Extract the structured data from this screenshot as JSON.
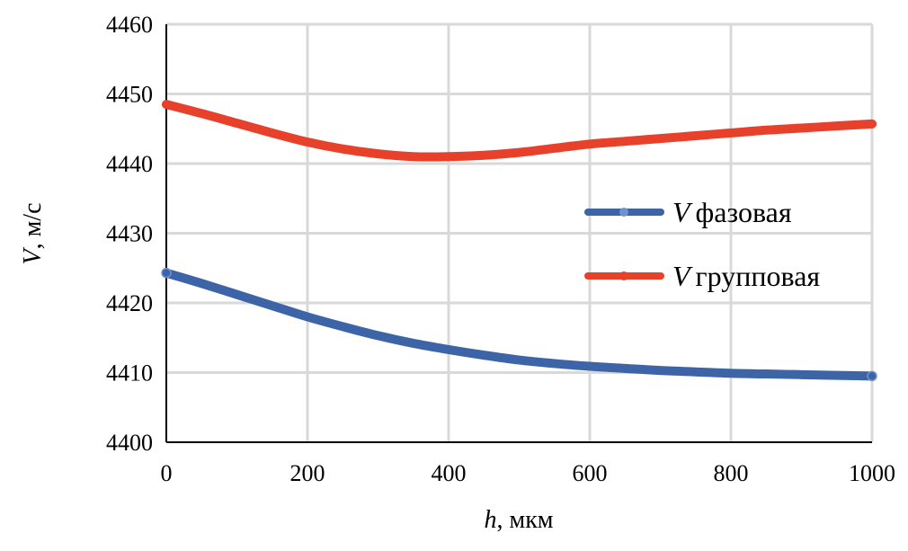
{
  "chart_data": {
    "type": "line",
    "title": "",
    "xlabel": {
      "var": "h",
      "unit": ", мкм"
    },
    "ylabel": {
      "var": "V",
      "unit": ", м/с"
    },
    "xlim": [
      0,
      1000
    ],
    "ylim": [
      4400,
      4460
    ],
    "xticks": [
      0,
      200,
      400,
      600,
      800,
      1000
    ],
    "yticks": [
      4400,
      4410,
      4420,
      4430,
      4440,
      4450,
      4460
    ],
    "grid": true,
    "legend_placement": "right",
    "x": [
      0,
      50,
      100,
      150,
      200,
      250,
      300,
      350,
      400,
      450,
      500,
      550,
      600,
      650,
      700,
      750,
      800,
      850,
      900,
      950,
      1000
    ],
    "series": [
      {
        "name": "фазовая",
        "var": "V",
        "color": "#3c64a6",
        "values": [
          4424.3,
          4422.8,
          4421.2,
          4419.6,
          4418.0,
          4416.6,
          4415.3,
          4414.2,
          4413.3,
          4412.5,
          4411.8,
          4411.3,
          4410.9,
          4410.6,
          4410.3,
          4410.1,
          4409.9,
          4409.8,
          4409.7,
          4409.6,
          4409.5
        ]
      },
      {
        "name": "групповая",
        "var": "V",
        "color": "#e8412b",
        "values": [
          4448.5,
          4447.2,
          4445.8,
          4444.4,
          4443.1,
          4442.1,
          4441.4,
          4441.0,
          4441.0,
          4441.2,
          4441.6,
          4442.2,
          4442.8,
          4443.2,
          4443.6,
          4444.0,
          4444.4,
          4444.8,
          4445.1,
          4445.4,
          4445.7
        ]
      }
    ]
  }
}
